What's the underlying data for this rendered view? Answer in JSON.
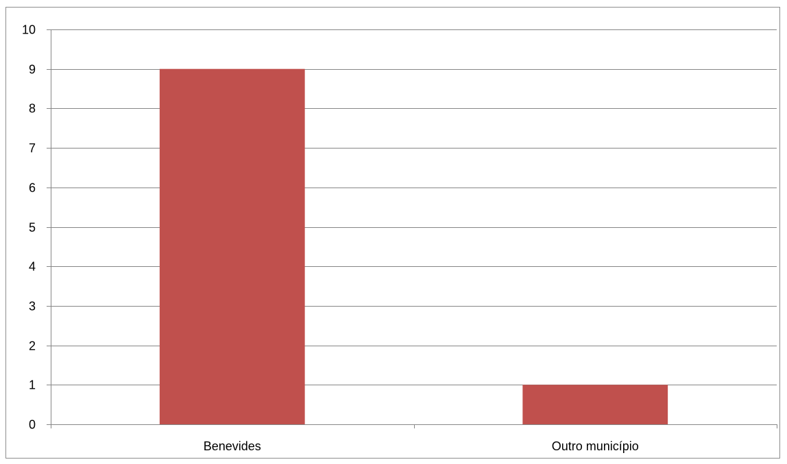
{
  "chart_data": {
    "type": "bar",
    "categories": [
      "Benevides",
      "Outro município"
    ],
    "values": [
      9,
      1
    ],
    "ylim": [
      0,
      10
    ],
    "yticks": [
      0,
      1,
      2,
      3,
      4,
      5,
      6,
      7,
      8,
      9,
      10
    ],
    "grid": true,
    "legend": "none",
    "bar_color": "#c0504d",
    "gridline_color": "#868686",
    "title": "",
    "xlabel": "",
    "ylabel": ""
  }
}
